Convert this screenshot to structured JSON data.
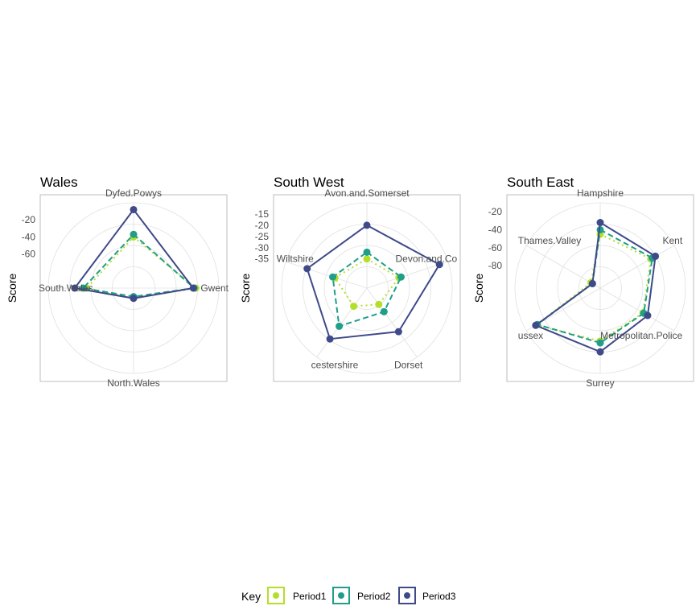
{
  "legend": {
    "title": "Key",
    "entries": [
      {
        "label": "Period1",
        "color": "#b5de2b",
        "dash": "dotted"
      },
      {
        "label": "Period2",
        "color": "#1f9e89",
        "dash": "dashed"
      },
      {
        "label": "Period3",
        "color": "#3e4a89",
        "dash": "solid"
      }
    ]
  },
  "chart_data": [
    {
      "type": "radar",
      "title": "Wales",
      "ylabel": "Score",
      "categories": [
        "Dyfed.Powys",
        "Gwent",
        "North.Wales",
        "South.Wales"
      ],
      "r_ticks": [
        -20,
        -40,
        -60
      ],
      "r_range": [
        -100,
        0
      ],
      "grid": true,
      "series": [
        {
          "name": "Period1",
          "values": [
            -40,
            -27,
            -88,
            -45
          ]
        },
        {
          "name": "Period2",
          "values": [
            -37,
            -29,
            -90,
            -41
          ]
        },
        {
          "name": "Period3",
          "values": [
            -8,
            -30,
            -88,
            -31
          ]
        }
      ]
    },
    {
      "type": "radar",
      "title": "South West",
      "ylabel": "Score",
      "categories": [
        "Avon.and.Somerset",
        "Devon.and.Cornwall",
        "Dorset",
        "Gloucestershire",
        "Wiltshire"
      ],
      "category_labels": [
        "Avon.and.Somerset",
        "Devon.and.Co",
        "Dorset",
        "cestershire",
        "Wiltshire"
      ],
      "r_ticks": [
        -15,
        -20,
        -25,
        -30,
        -35
      ],
      "r_range": [
        -48,
        -10
      ],
      "grid": true,
      "series": [
        {
          "name": "Period1",
          "values": [
            -35,
            -33,
            -39,
            -38,
            -33
          ]
        },
        {
          "name": "Period2",
          "values": [
            -32,
            -32,
            -35,
            -27,
            -32
          ]
        },
        {
          "name": "Period3",
          "values": [
            -20,
            -14,
            -24,
            -20,
            -20
          ]
        }
      ]
    },
    {
      "type": "radar",
      "title": "South East",
      "ylabel": "Score",
      "categories": [
        "Hampshire",
        "Kent",
        "Metropolitan.Police",
        "Surrey",
        "Sussex",
        "Thames.Valley"
      ],
      "category_labels": [
        "Hampshire",
        "Kent",
        "Metropolitan.Police",
        "Surrey",
        "ussex",
        "Thames.Valley"
      ],
      "r_ticks": [
        -20,
        -40,
        -60,
        -80
      ],
      "r_range": [
        -105,
        -10
      ],
      "grid": true,
      "series": [
        {
          "name": "Period1",
          "values": [
            -45,
            -40,
            -50,
            -46,
            -23,
            -93
          ]
        },
        {
          "name": "Period2",
          "values": [
            -40,
            -38,
            -49,
            -44,
            -24,
            -95
          ]
        },
        {
          "name": "Period3",
          "values": [
            -32,
            -34,
            -44,
            -34,
            -22,
            -95
          ]
        }
      ]
    }
  ]
}
